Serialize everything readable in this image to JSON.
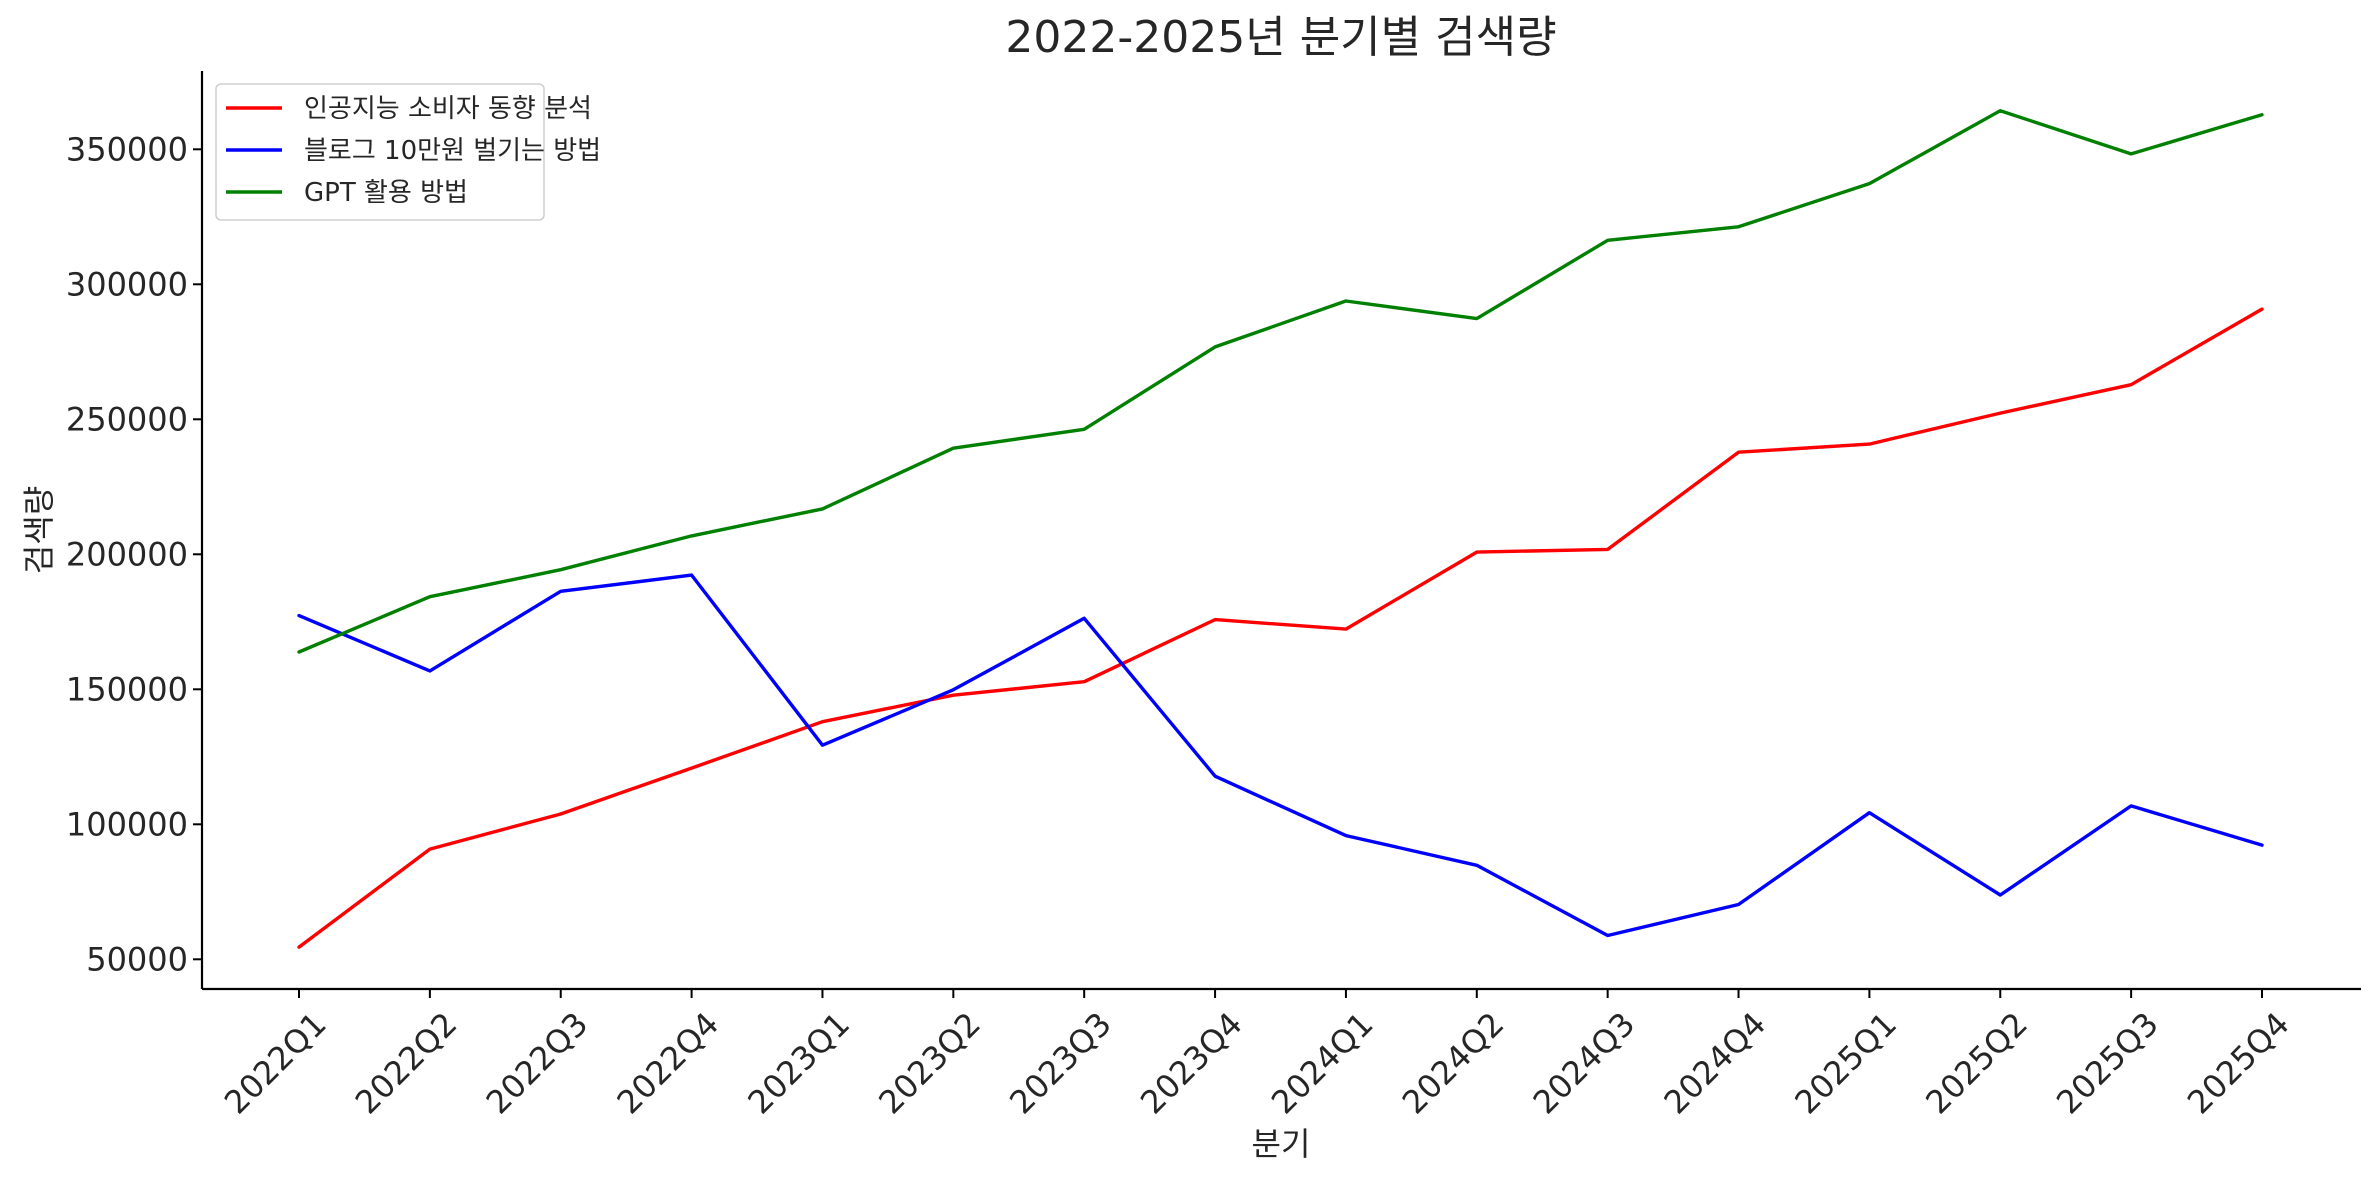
{
  "chart_data": {
    "type": "line",
    "title": "2022-2025년 분기별 검색량",
    "xlabel": "분기",
    "ylabel": "검색량",
    "categories": [
      "2022Q1",
      "2022Q2",
      "2022Q3",
      "2022Q4",
      "2023Q1",
      "2023Q2",
      "2023Q3",
      "2023Q4",
      "2024Q1",
      "2024Q2",
      "2024Q3",
      "2024Q4",
      "2025Q1",
      "2025Q2",
      "2025Q3",
      "2025Q4"
    ],
    "ylim": [
      39000,
      379000
    ],
    "yticks": [
      50000,
      100000,
      150000,
      200000,
      250000,
      300000,
      350000
    ],
    "grid": false,
    "legend_position": "top-left",
    "series": [
      {
        "name": "인공지능 소비자 동향 분석",
        "color": "#ff0000",
        "values": [
          54500,
          90800,
          103800,
          120800,
          138000,
          147800,
          152800,
          175800,
          172300,
          200800,
          201800,
          237800,
          240800,
          252300,
          262800,
          290800
        ]
      },
      {
        "name": "블로그 10만원 벌기는 방법",
        "color": "#0000ff",
        "values": [
          177300,
          156800,
          186300,
          192300,
          129300,
          149800,
          176300,
          117800,
          95800,
          84800,
          58800,
          70300,
          104300,
          73800,
          106800,
          92300
        ]
      },
      {
        "name": "GPT 활용 방법",
        "color": "#008000",
        "values": [
          163800,
          184300,
          194300,
          206800,
          216800,
          239300,
          246300,
          276800,
          293800,
          287300,
          316300,
          321300,
          337300,
          364300,
          348300,
          362800
        ]
      }
    ]
  }
}
